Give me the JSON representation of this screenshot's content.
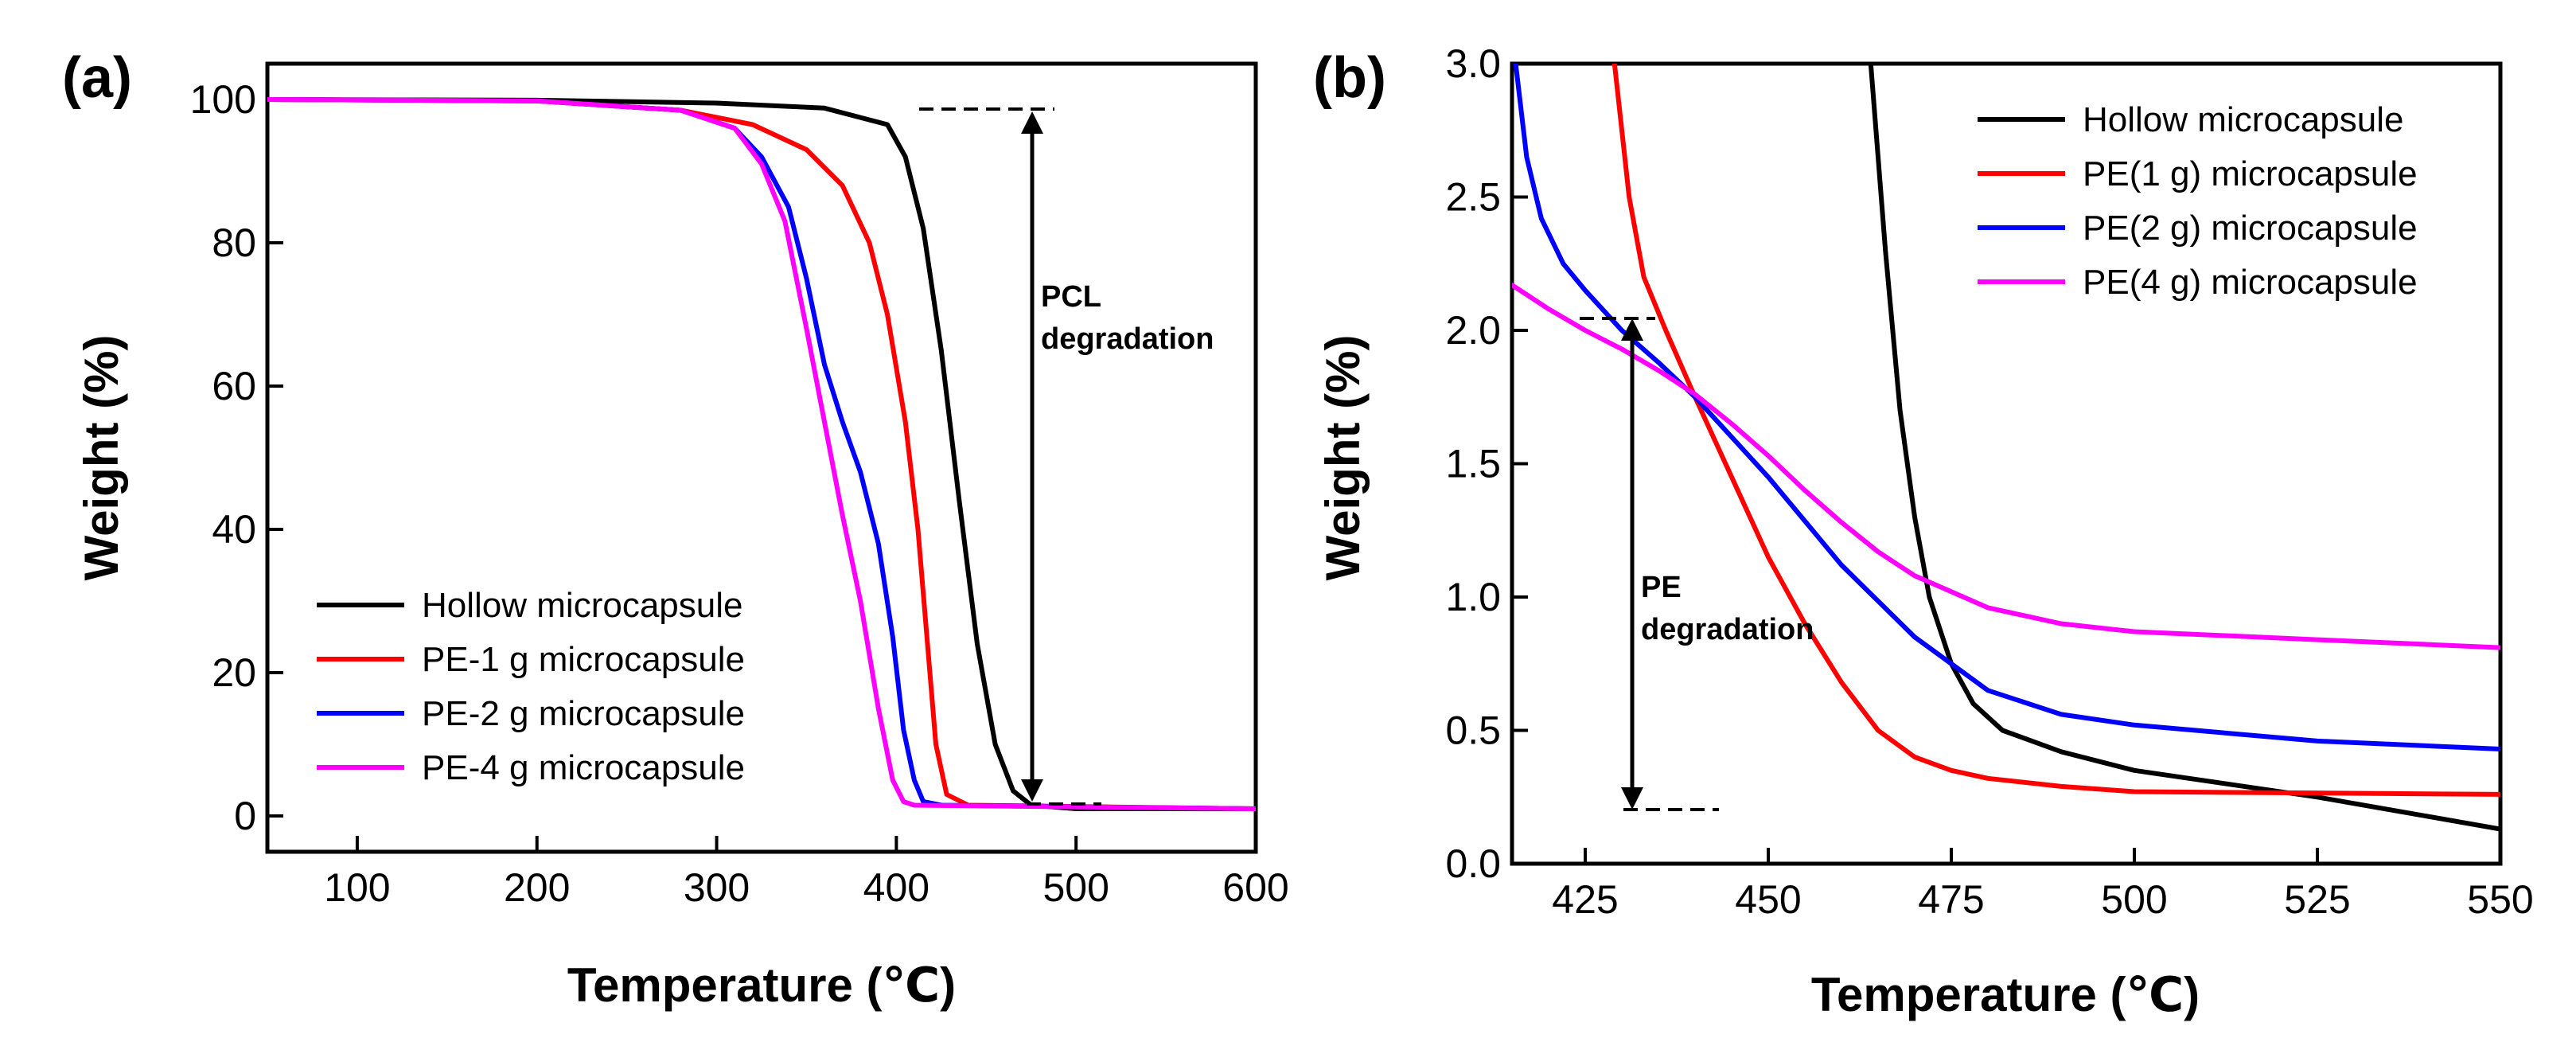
{
  "chart_data": [
    {
      "panel": "(a)",
      "type": "line",
      "xlabel": "Temperature (℃)",
      "ylabel": "Weight (%)",
      "xlim": [
        50,
        600
      ],
      "ylim": [
        -5,
        105
      ],
      "xticks": [
        100,
        200,
        300,
        400,
        500,
        600
      ],
      "yticks": [
        0,
        20,
        40,
        60,
        80,
        100
      ],
      "legend_position": "bottom-left",
      "series": [
        {
          "name": "Hollow microcapsule",
          "color": "#000000",
          "x": [
            50,
            200,
            300,
            360,
            395,
            405,
            415,
            425,
            435,
            445,
            455,
            465,
            475,
            500,
            600
          ],
          "y": [
            100,
            99.9,
            99.5,
            98.8,
            96.5,
            92,
            82,
            65,
            44,
            24,
            10,
            3.5,
            1.5,
            1.0,
            1.0
          ]
        },
        {
          "name": "PE-1 g microcapsule",
          "color": "#ff0000",
          "x": [
            50,
            200,
            280,
            320,
            350,
            370,
            385,
            395,
            405,
            412,
            418,
            422,
            428,
            440,
            600
          ],
          "y": [
            100,
            99.8,
            98.5,
            96.5,
            93,
            88,
            80,
            70,
            55,
            40,
            22,
            10,
            3,
            1.5,
            1.0
          ]
        },
        {
          "name": "PE-2 g microcapsule",
          "color": "#0000ff",
          "x": [
            50,
            200,
            280,
            310,
            325,
            340,
            350,
            360,
            370,
            380,
            390,
            398,
            404,
            410,
            415,
            425,
            600
          ],
          "y": [
            100,
            99.8,
            98.5,
            96,
            92,
            85,
            75,
            63,
            55,
            48,
            38,
            25,
            12,
            5,
            2,
            1.5,
            1.0
          ]
        },
        {
          "name": "PE-4 g microcapsule",
          "color": "#ff00ff",
          "x": [
            50,
            200,
            280,
            310,
            325,
            338,
            350,
            360,
            370,
            380,
            390,
            398,
            404,
            410,
            600
          ],
          "y": [
            100,
            99.8,
            98.5,
            96,
            91,
            83,
            68,
            55,
            42,
            30,
            15,
            5,
            2,
            1.5,
            1.0
          ]
        }
      ],
      "annotations": [
        {
          "text": "PCL degradation",
          "lines": [
            "PCL",
            "degradation"
          ],
          "arrow_x": 477,
          "arrow_from": 98,
          "arrow_to": 1
        }
      ]
    },
    {
      "panel": "(b)",
      "type": "line",
      "xlabel": "Temperature (℃)",
      "ylabel": "Weight (%)",
      "xlim": [
        415,
        550
      ],
      "ylim": [
        0,
        3.0
      ],
      "xticks": [
        425,
        450,
        475,
        500,
        525,
        550
      ],
      "yticks": [
        "0.0",
        "0.5",
        "1.0",
        "1.5",
        "2.0",
        "2.5",
        "3.0"
      ],
      "legend_position": "top-right",
      "series": [
        {
          "name": "Hollow microcapsule",
          "color": "#000000",
          "x": [
            464,
            466,
            468,
            470,
            472,
            475,
            478,
            482,
            490,
            500,
            525,
            550
          ],
          "y": [
            3.0,
            2.3,
            1.7,
            1.3,
            1.0,
            0.75,
            0.6,
            0.5,
            0.42,
            0.35,
            0.25,
            0.13
          ]
        },
        {
          "name": "PE(1 g) microcapsule",
          "color": "#ff0000",
          "x": [
            429,
            431,
            433,
            436,
            440,
            445,
            450,
            455,
            460,
            465,
            470,
            475,
            480,
            490,
            500,
            550
          ],
          "y": [
            3.0,
            2.5,
            2.2,
            2.0,
            1.75,
            1.45,
            1.15,
            0.9,
            0.68,
            0.5,
            0.4,
            0.35,
            0.32,
            0.29,
            0.27,
            0.26
          ]
        },
        {
          "name": "PE(2 g) microcapsule",
          "color": "#0000ff",
          "x": [
            415.5,
            417,
            419,
            422,
            425,
            430,
            435,
            440,
            445,
            450,
            460,
            470,
            480,
            490,
            500,
            525,
            550
          ],
          "y": [
            3.0,
            2.65,
            2.42,
            2.25,
            2.15,
            2.0,
            1.88,
            1.75,
            1.6,
            1.45,
            1.12,
            0.85,
            0.65,
            0.56,
            0.52,
            0.46,
            0.43
          ]
        },
        {
          "name": "PE(4 g) microcapsule",
          "color": "#ff00ff",
          "x": [
            415,
            420,
            425,
            430,
            435,
            440,
            445,
            450,
            455,
            460,
            465,
            470,
            480,
            490,
            500,
            525,
            550
          ],
          "y": [
            2.17,
            2.08,
            2.0,
            1.93,
            1.85,
            1.76,
            1.65,
            1.53,
            1.4,
            1.28,
            1.17,
            1.08,
            0.96,
            0.9,
            0.87,
            0.84,
            0.81
          ]
        }
      ],
      "annotations": [
        {
          "text": "PE degradation",
          "lines": [
            "PE",
            "degradation"
          ],
          "arrow_x": 433,
          "arrow_from": 2.05,
          "arrow_to": 0.2
        }
      ]
    }
  ]
}
